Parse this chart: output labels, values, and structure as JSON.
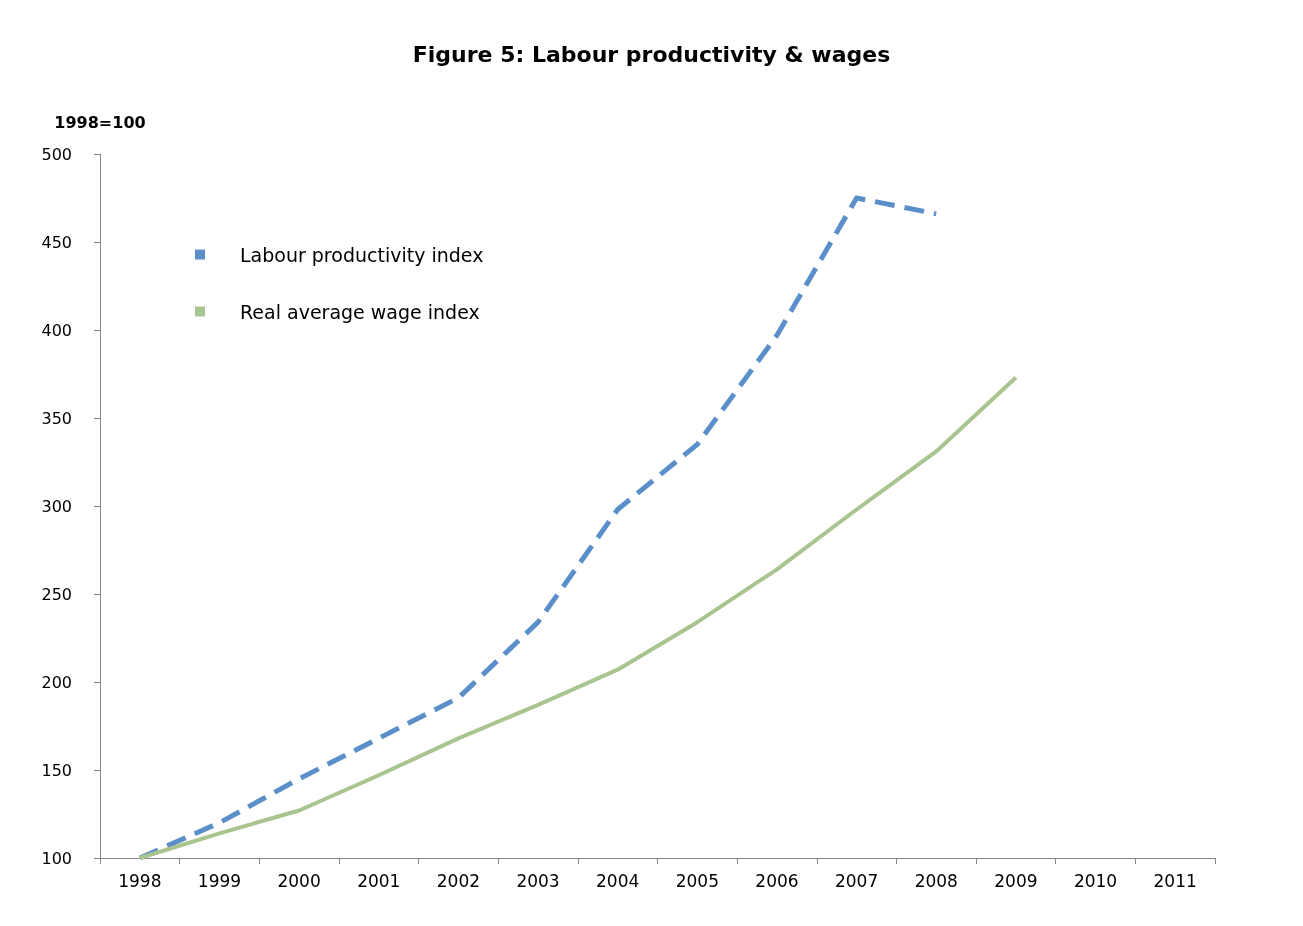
{
  "chart_data": {
    "type": "line",
    "title": "Figure 5: Labour productivity & wages",
    "ylabel": "1998=100",
    "categories": [
      "1998",
      "1999",
      "2000",
      "2001",
      "2002",
      "2003",
      "2004",
      "2005",
      "2006",
      "2007",
      "2008",
      "2009",
      "2010",
      "2011"
    ],
    "series": [
      {
        "name": "Labour productivity index",
        "color": "#5b8fc9",
        "line_style": "dashed",
        "values": [
          100,
          120,
          145,
          168,
          191,
          234,
          298,
          335,
          397,
          475,
          466,
          null,
          null,
          null
        ]
      },
      {
        "name": "Real average wage index",
        "color": "#a9c58f",
        "line_style": "solid",
        "values": [
          100,
          114,
          127,
          147,
          168,
          187,
          207,
          234,
          264,
          298,
          331,
          373,
          null,
          null
        ]
      }
    ],
    "ylim": [
      100,
      500
    ],
    "yticks": [
      100,
      150,
      200,
      250,
      300,
      350,
      400,
      450,
      500
    ],
    "grid": false,
    "legend": "top left",
    "marker": "none"
  }
}
